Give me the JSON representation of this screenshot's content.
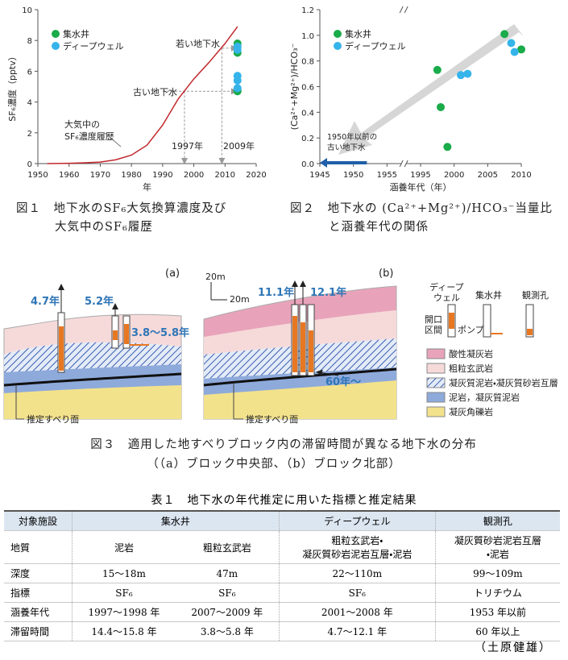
{
  "chart_data": [
    {
      "type": "line",
      "x_label": "年",
      "y_label": "SF₆濃度（pptv）",
      "xlim": [
        1950,
        2020
      ],
      "xticks": [
        1950,
        1960,
        1970,
        1980,
        1990,
        2000,
        2010,
        2020
      ],
      "ylim": [
        0,
        10
      ],
      "yticks": [
        0,
        2,
        4,
        6,
        8,
        10
      ],
      "grid": false,
      "series": [
        {
          "mark": "line",
          "color": "#c0282d",
          "x": [
            1953,
            1960,
            1965,
            1970,
            1975,
            1980,
            1985,
            1990,
            1995,
            2000,
            2005,
            2010,
            2014
          ],
          "values": [
            0,
            0.02,
            0.05,
            0.1,
            0.25,
            0.55,
            1.2,
            2.5,
            4.2,
            5.5,
            6.6,
            7.8,
            8.9
          ]
        },
        {
          "mark": "point",
          "name": "集水井",
          "color": "#1aab4a",
          "x": [
            2014,
            2014,
            2014,
            2014
          ],
          "values": [
            7.8,
            7.2,
            4.8,
            4.7
          ]
        },
        {
          "mark": "point",
          "name": "ディープウェル",
          "color": "#35b4ea",
          "x": [
            2014,
            2014,
            2014,
            2014,
            2014
          ],
          "values": [
            7.6,
            7.4,
            5.7,
            5.4,
            4.9
          ]
        }
      ],
      "legend": "top-left",
      "annotations": [
        [
          "若い地下水"
        ],
        [
          "古い地下水"
        ],
        [
          "大気中の",
          "SF₆濃度履歴"
        ],
        [
          "1997年"
        ],
        [
          "2009年"
        ]
      ],
      "caption": [
        "図１　地下水のSF₆大気換算濃度及び",
        "大気中のSF₆履歴"
      ]
    },
    {
      "type": "scatter",
      "x_label": "涵養年代（年）",
      "y_label": "(Ca²⁺+Mg²⁺)/HCO₃⁻",
      "xlim": [
        1945,
        2010
      ],
      "xticks": [
        1945,
        1950,
        1955,
        1995,
        2000,
        2005,
        2010
      ],
      "x_break": [
        1955,
        1995
      ],
      "ylim": [
        0,
        1.2
      ],
      "yticks": [
        {
          "value": 0,
          "label": "0.0"
        },
        0.2,
        0.4,
        0.6,
        0.8,
        {
          "value": 1,
          "label": "1.0"
        },
        1.2
      ],
      "grid": false,
      "series": [
        {
          "mark": "point",
          "name": "集水井",
          "color": "#1aab4a",
          "x": [
            1997.5,
            1998,
            1999,
            2007.5,
            2010
          ],
          "values": [
            0.73,
            0.44,
            0.13,
            1.01,
            0.89
          ]
        },
        {
          "mark": "point",
          "name": "ディープウェル",
          "color": "#35b4ea",
          "x": [
            2001,
            2002,
            2008.5,
            2009
          ],
          "values": [
            0.69,
            0.7,
            0.94,
            0.87
          ]
        }
      ],
      "legend": "top-left",
      "annotations": [
        [
          "1950年以前の",
          "古い地下水"
        ]
      ],
      "caption": [
        "図２　地下水の (Ca²⁺+Mg²⁺)/HCO₃⁻当量比",
        "と涵養年代の関係"
      ]
    }
  ],
  "diagram": {
    "panels": [
      {
        "label": "(a)",
        "ages": [
          "4.7年",
          "5.2年",
          "3.8～5.8年"
        ],
        "slip_surface": "推定すべり面"
      },
      {
        "label": "(b)",
        "ages": [
          "11.1年",
          "12.1年",
          "60年～"
        ],
        "slip_surface": "推定すべり面",
        "scale": [
          "20m",
          "20m"
        ]
      }
    ],
    "legend": {
      "facilities": [
        [
          "ディープ",
          "ウェル"
        ],
        "集水井",
        "観測孔"
      ],
      "open_section": [
        "開口",
        "区間"
      ],
      "pump": "ポンプ",
      "layers": [
        "酸性凝灰岩",
        "粗粒玄武岩",
        "凝灰質泥岩・凝灰質砂岩互層",
        "泥岩，凝灰質泥岩",
        "凝灰角礫岩"
      ]
    },
    "caption": [
      "図３　適用した地すべりブロック内の滞留時間が異なる地下水の分布",
      "（（a）ブロック中央部、（b）ブロック北部）"
    ]
  },
  "table": {
    "title": "表１　地下水の年代推定に用いた指標と推定結果",
    "header": [
      "対象施設",
      "集水井",
      "ディープウェル",
      "観測孔"
    ],
    "rows": [
      [
        "地質",
        "泥岩",
        "粗粒玄武岩",
        [
          "粗粒玄武岩・",
          "凝灰質砂岩泥岩互層・泥岩"
        ],
        [
          "凝灰質砂岩泥岩互層",
          "・泥岩"
        ]
      ],
      [
        "深度",
        "15～18m",
        "47m",
        "22～110m",
        "99～109m"
      ],
      [
        "指標",
        "SF₆",
        "SF₆",
        "SF₆",
        "トリチウム"
      ],
      [
        "涵養年代",
        "1997～1998 年",
        "2007～2009 年",
        "2001～2008 年",
        "1953 年以前"
      ],
      [
        "滞留時間",
        "14.4～15.8 年",
        "3.8～5.8 年",
        "4.7～12.1 年",
        "60 年以上"
      ]
    ]
  },
  "author": "（土原健雄）"
}
